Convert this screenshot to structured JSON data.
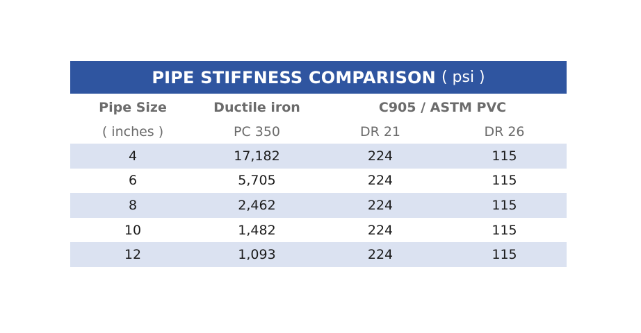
{
  "title": {
    "main": "PIPE STIFFNESS COMPARISON",
    "unit": "( psi )"
  },
  "header": {
    "col1_title": "Pipe Size",
    "col1_sub": "( inches )",
    "col2_title": "Ductile iron",
    "col2_sub": "PC 350",
    "group_title": "C905 / ASTM PVC",
    "col3_sub": "DR 21",
    "col4_sub": "DR 26"
  },
  "rows": [
    {
      "size": "4",
      "ductile": "17,182",
      "dr21": "224",
      "dr26": "115"
    },
    {
      "size": "6",
      "ductile": "5,705",
      "dr21": "224",
      "dr26": "115"
    },
    {
      "size": "8",
      "ductile": "2,462",
      "dr21": "224",
      "dr26": "115"
    },
    {
      "size": "10",
      "ductile": "1,482",
      "dr21": "224",
      "dr26": "115"
    },
    {
      "size": "12",
      "ductile": "1,093",
      "dr21": "224",
      "dr26": "115"
    }
  ],
  "colors": {
    "title_bg": "#2f55a0",
    "band_bg": "#dbe2f1",
    "header_text": "#6b6b6b"
  }
}
